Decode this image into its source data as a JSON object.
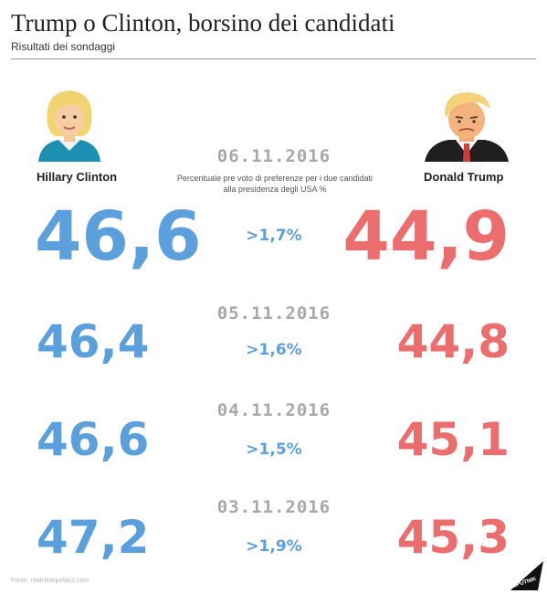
{
  "header": {
    "title": "Trump o Clinton, borsino dei candidati",
    "subtitle": "Risultati dei sondaggi"
  },
  "candidates": {
    "left": "Hillary Clinton",
    "right": "Donald Trump"
  },
  "description": "Percentuale pre voto di preferenze per i due candidati alla presidenza degli USA %",
  "footer": {
    "source": "Fonte: realclearpolitics.com",
    "logo_text": "SPUTNIK"
  },
  "colors": {
    "clinton": "#5b9fdd",
    "trump": "#ec6d6d",
    "date": "#a8a8a8"
  },
  "chart_data": {
    "type": "table",
    "columns": [
      "Hillary Clinton",
      "Donald Trump"
    ],
    "rows": [
      {
        "date": "06.11.2016",
        "clinton": "46,6",
        "trump": "44,9",
        "diff": ">1,7%"
      },
      {
        "date": "05.11.2016",
        "clinton": "46,4",
        "trump": "44,8",
        "diff": ">1,6%"
      },
      {
        "date": "04.11.2016",
        "clinton": "46,6",
        "trump": "45,1",
        "diff": ">1,5%"
      },
      {
        "date": "03.11.2016",
        "clinton": "47,2",
        "trump": "45,3",
        "diff": ">1,9%"
      }
    ]
  }
}
